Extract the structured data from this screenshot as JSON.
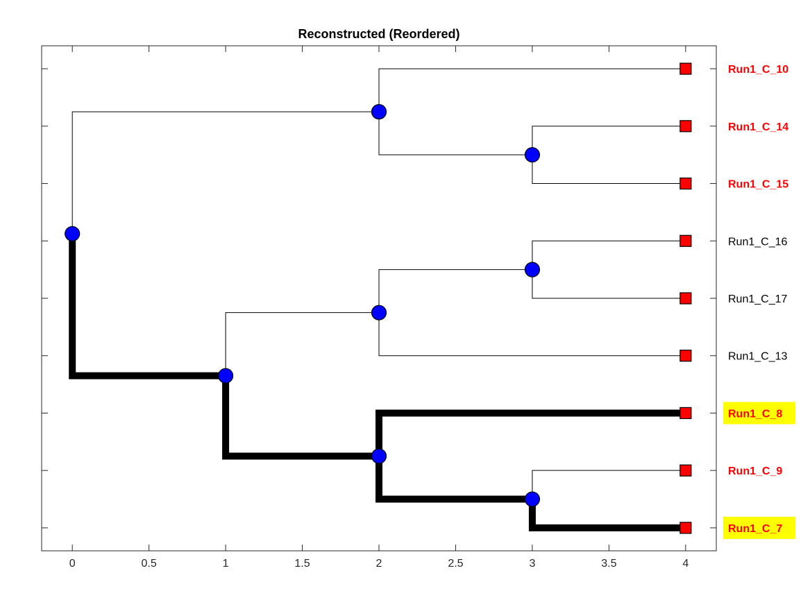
{
  "title": "Reconstructed (Reordered)",
  "x_axis": {
    "range": [
      -0.2,
      4.2
    ],
    "ticks": [
      0,
      0.5,
      1,
      1.5,
      2,
      2.5,
      3,
      3.5,
      4
    ],
    "tick_labels": [
      "0",
      "0.5",
      "1",
      "1.5",
      "2",
      "2.5",
      "3",
      "3.5",
      "4"
    ]
  },
  "y_axis": {
    "range": [
      0.6,
      9.4
    ],
    "ticks": [
      1,
      2,
      3,
      4,
      5,
      6,
      7,
      8,
      9
    ],
    "tick_labels_shown": false
  },
  "colors": {
    "internal_node": "#0000ff",
    "leaf_node": "#ff0000",
    "highlight_bg": "#ffff00",
    "bold_label": "#ff0000",
    "normal_label": "#000000",
    "edge": "#000000"
  },
  "leaves": [
    {
      "id": "L10",
      "label": "Run1_C_10",
      "x": 4,
      "y": 9,
      "style": "bold-red"
    },
    {
      "id": "L14",
      "label": "Run1_C_14",
      "x": 4,
      "y": 8,
      "style": "bold-red"
    },
    {
      "id": "L15",
      "label": "Run1_C_15",
      "x": 4,
      "y": 7,
      "style": "bold-red"
    },
    {
      "id": "L16",
      "label": "Run1_C_16",
      "x": 4,
      "y": 6,
      "style": "normal"
    },
    {
      "id": "L17",
      "label": "Run1_C_17",
      "x": 4,
      "y": 5,
      "style": "normal"
    },
    {
      "id": "L13",
      "label": "Run1_C_13",
      "x": 4,
      "y": 4,
      "style": "normal"
    },
    {
      "id": "L8",
      "label": "Run1_C_8",
      "x": 4,
      "y": 3,
      "style": "highlight"
    },
    {
      "id": "L9",
      "label": "Run1_C_9",
      "x": 4,
      "y": 2,
      "style": "bold-red"
    },
    {
      "id": "L7",
      "label": "Run1_C_7",
      "x": 4,
      "y": 1,
      "style": "highlight"
    }
  ],
  "internal_nodes": [
    {
      "id": "root",
      "x": 0,
      "y": 6.125
    },
    {
      "id": "A",
      "x": 2,
      "y": 8.25
    },
    {
      "id": "B",
      "x": 3,
      "y": 7.5
    },
    {
      "id": "C",
      "x": 1,
      "y": 3.65
    },
    {
      "id": "D",
      "x": 2,
      "y": 4.75
    },
    {
      "id": "E",
      "x": 3,
      "y": 5.5
    },
    {
      "id": "F",
      "x": 2,
      "y": 2.25
    },
    {
      "id": "G",
      "x": 3,
      "y": 1.5
    }
  ],
  "edges": [
    {
      "from": "root",
      "to": "A",
      "bold": false
    },
    {
      "from": "root",
      "to": "C",
      "bold": true
    },
    {
      "from": "A",
      "to": "L10",
      "bold": false
    },
    {
      "from": "A",
      "to": "B",
      "bold": false
    },
    {
      "from": "B",
      "to": "L14",
      "bold": false
    },
    {
      "from": "B",
      "to": "L15",
      "bold": false
    },
    {
      "from": "C",
      "to": "D",
      "bold": false
    },
    {
      "from": "C",
      "to": "F",
      "bold": true
    },
    {
      "from": "D",
      "to": "E",
      "bold": false
    },
    {
      "from": "D",
      "to": "L13",
      "bold": false
    },
    {
      "from": "E",
      "to": "L16",
      "bold": false
    },
    {
      "from": "E",
      "to": "L17",
      "bold": false
    },
    {
      "from": "F",
      "to": "L8",
      "bold": true
    },
    {
      "from": "F",
      "to": "G",
      "bold": true
    },
    {
      "from": "G",
      "to": "L9",
      "bold": false
    },
    {
      "from": "G",
      "to": "L7",
      "bold": true
    }
  ]
}
